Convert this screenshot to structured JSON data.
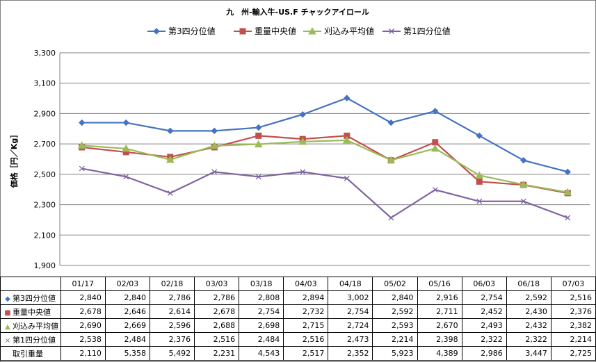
{
  "chart_data": {
    "type": "line",
    "title": "九　州-輸入牛-US.F チャックアイロール",
    "ylabel": "価格［円／Kg］",
    "ylim": [
      1900,
      3300
    ],
    "yticks": [
      "1,900",
      "2,100",
      "2,300",
      "2,500",
      "2,700",
      "2,900",
      "3,100",
      "3,300"
    ],
    "ytick_values": [
      1900,
      2100,
      2300,
      2500,
      2700,
      2900,
      3100,
      3300
    ],
    "grid": true,
    "legend_position": "top",
    "categories": [
      "01/17",
      "02/03",
      "02/18",
      "03/03",
      "03/18",
      "04/03",
      "04/18",
      "05/02",
      "05/16",
      "06/03",
      "06/18",
      "07/03"
    ],
    "series": [
      {
        "name": "第3四分位値",
        "marker": "diamond",
        "color": "#4472C4",
        "marker_glyph": "◆",
        "values": [
          2840,
          2840,
          2786,
          2786,
          2808,
          2894,
          3002,
          2840,
          2916,
          2754,
          2592,
          2516
        ],
        "labels": [
          "2,840",
          "2,840",
          "2,786",
          "2,786",
          "2,808",
          "2,894",
          "3,002",
          "2,840",
          "2,916",
          "2,754",
          "2,592",
          "2,516"
        ]
      },
      {
        "name": "重量中央値",
        "marker": "square",
        "color": "#C0504D",
        "marker_glyph": "■",
        "values": [
          2678,
          2646,
          2614,
          2678,
          2754,
          2732,
          2754,
          2592,
          2711,
          2452,
          2430,
          2376
        ],
        "labels": [
          "2,678",
          "2,646",
          "2,614",
          "2,678",
          "2,754",
          "2,732",
          "2,754",
          "2,592",
          "2,711",
          "2,452",
          "2,430",
          "2,376"
        ]
      },
      {
        "name": "刈込み平均値",
        "marker": "triangle",
        "color": "#9BBB59",
        "marker_glyph": "▲",
        "values": [
          2690,
          2669,
          2596,
          2688,
          2698,
          2715,
          2724,
          2593,
          2670,
          2493,
          2432,
          2382
        ],
        "labels": [
          "2,690",
          "2,669",
          "2,596",
          "2,688",
          "2,698",
          "2,715",
          "2,724",
          "2,593",
          "2,670",
          "2,493",
          "2,432",
          "2,382"
        ]
      },
      {
        "name": "第1四分位値",
        "marker": "x",
        "color": "#8064A2",
        "marker_glyph": "×",
        "values": [
          2538,
          2484,
          2376,
          2516,
          2484,
          2516,
          2473,
          2214,
          2398,
          2322,
          2322,
          2214
        ],
        "labels": [
          "2,538",
          "2,484",
          "2,376",
          "2,516",
          "2,484",
          "2,516",
          "2,473",
          "2,214",
          "2,398",
          "2,322",
          "2,322",
          "2,214"
        ]
      }
    ],
    "extra_row": {
      "name": "取引重量",
      "labels": [
        "2,110",
        "5,358",
        "5,492",
        "2,231",
        "4,543",
        "2,517",
        "2,352",
        "5,923",
        "4,389",
        "2,986",
        "3,447",
        "2,725"
      ]
    }
  }
}
